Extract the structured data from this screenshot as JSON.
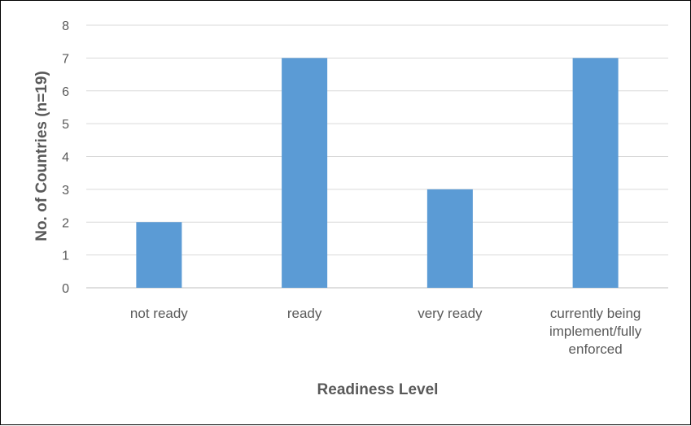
{
  "chart_data": {
    "type": "bar",
    "categories": [
      [
        "not ready"
      ],
      [
        "ready"
      ],
      [
        "very ready"
      ],
      [
        "currently being",
        "implement/fully",
        "enforced"
      ]
    ],
    "values": [
      2,
      7,
      3,
      7
    ],
    "title": "",
    "xlabel": "Readiness Level",
    "ylabel": "No. of Countries (n=19)",
    "ylim": [
      0,
      8
    ],
    "yticks": [
      0,
      1,
      2,
      3,
      4,
      5,
      6,
      7,
      8
    ],
    "grid": true,
    "bar_color": "#5B9BD5",
    "grid_color": "#D9D9D9"
  }
}
